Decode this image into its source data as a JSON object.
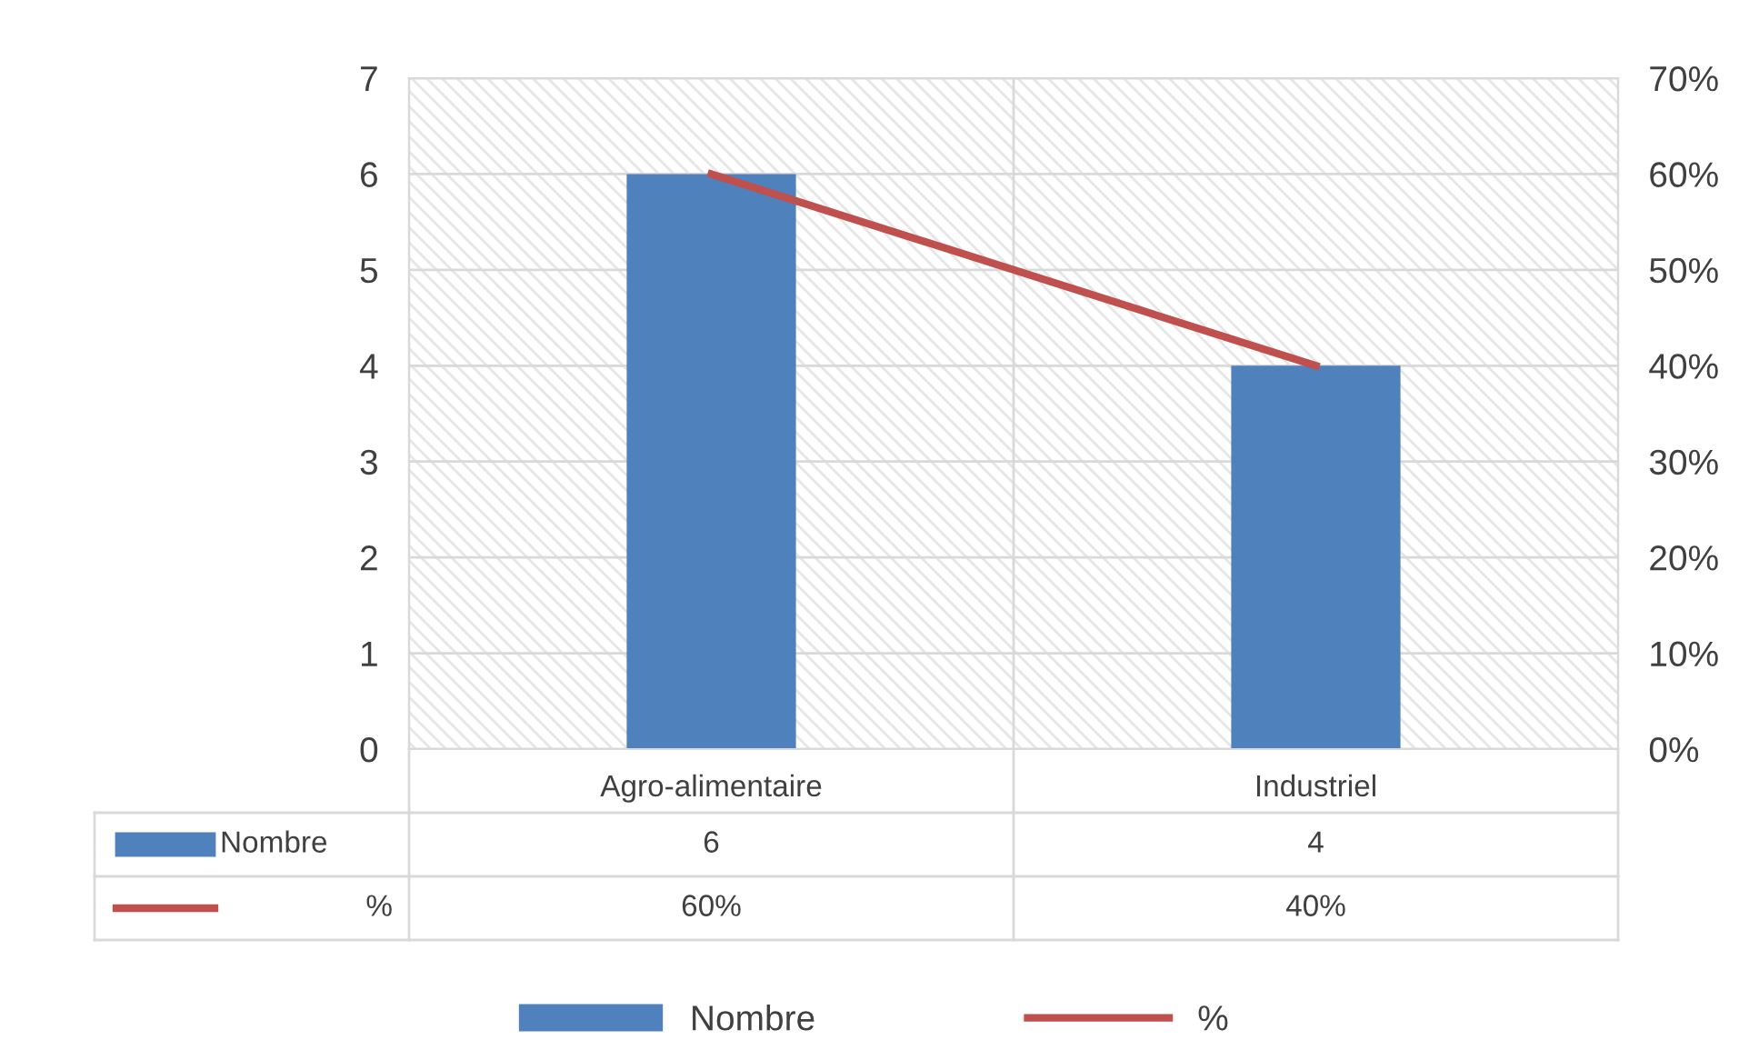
{
  "chart_data": {
    "type": "bar",
    "categories": [
      "Agro-alimentaire",
      "Industriel"
    ],
    "series": [
      {
        "name": "Nombre",
        "color": "#4f81bd",
        "values": [
          6,
          4
        ],
        "value_labels": [
          "6",
          "4"
        ]
      },
      {
        "name": "%",
        "type": "line",
        "axis": "y2",
        "color": "#c0504d",
        "values": [
          60,
          40
        ],
        "value_labels": [
          "60%",
          "40%"
        ]
      }
    ],
    "ylim": [
      0,
      7
    ],
    "yticks": [
      0,
      1,
      2,
      3,
      4,
      5,
      6,
      7
    ],
    "y2lim": [
      0,
      70
    ],
    "y2ticks": [
      {
        "value": 0,
        "label": "0%"
      },
      {
        "value": 10,
        "label": "10%"
      },
      {
        "value": 20,
        "label": "20%"
      },
      {
        "value": 30,
        "label": "30%"
      },
      {
        "value": 40,
        "label": "40%"
      },
      {
        "value": 50,
        "label": "50%"
      },
      {
        "value": 60,
        "label": "60%"
      },
      {
        "value": 70,
        "label": "70%"
      }
    ],
    "grid": true,
    "legend": "bottom"
  }
}
